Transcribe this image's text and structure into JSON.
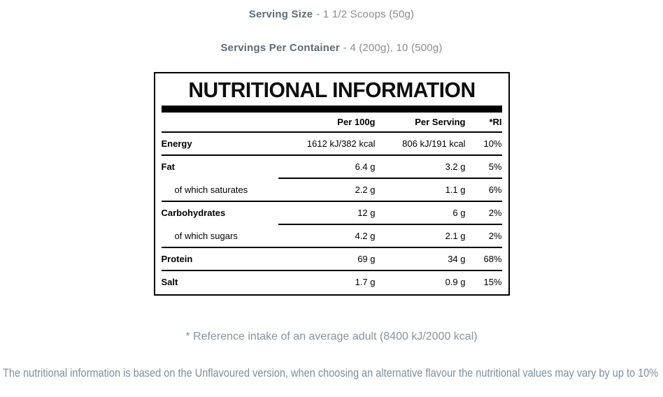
{
  "serving_info": {
    "serving_size_label": "Serving Size",
    "serving_size_value": "- 1 1/2 Scoops (50g)",
    "servings_per_container_label": "Servings Per Container",
    "servings_per_container_value": "- 4 (200g), 10 (500g)"
  },
  "nutrition_table": {
    "title": "NUTRITIONAL INFORMATION",
    "column_headers": {
      "per_100g": "Per 100g",
      "per_serving": "Per Serving",
      "ri": "*RI"
    },
    "rows": [
      {
        "label": "Energy",
        "per_100g": "1612 kJ/382 kcal",
        "per_serving": "806 kJ/191 kcal",
        "ri": "10%"
      },
      {
        "label": "Fat",
        "per_100g": "6.4 g",
        "per_serving": "3.2 g",
        "ri": "5%"
      },
      {
        "label": "of which saturates",
        "per_100g": "2.2 g",
        "per_serving": "1.1 g",
        "ri": "6%"
      },
      {
        "label": "Carbohydrates",
        "per_100g": "12 g",
        "per_serving": "6 g",
        "ri": "2%"
      },
      {
        "label": "of which sugars",
        "per_100g": "4.2 g",
        "per_serving": "2.1 g",
        "ri": "2%"
      },
      {
        "label": "Protein",
        "per_100g": "69 g",
        "per_serving": "34 g",
        "ri": "68%"
      },
      {
        "label": "Salt",
        "per_100g": "1.7 g",
        "per_serving": "0.9 g",
        "ri": "15%"
      }
    ]
  },
  "footnotes": {
    "reference_intake": "* Reference intake of an average adult (8400 kJ/2000 kcal)",
    "flavour_variation": "The nutritional information is based on the Unflavoured version, when choosing an alternative flavour the nutritional values may vary by up to 10%"
  },
  "colors": {
    "label_slate": "#5c6c78",
    "body_gray": "#8a8c8e",
    "note_blue_gray": "#8694a0",
    "flavour_note_blue_gray": "#7e8f9e",
    "table_text": "#000000",
    "table_border": "#000000"
  }
}
